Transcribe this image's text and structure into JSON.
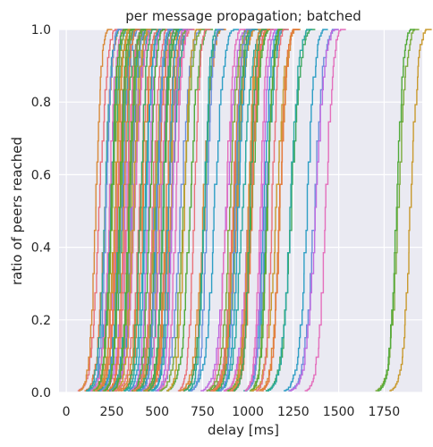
{
  "chart_data": {
    "type": "line",
    "title": "per message propagation; batched",
    "xlabel": "delay [ms]",
    "ylabel": "ratio of peers reached",
    "xlim": [
      -40,
      1960
    ],
    "ylim": [
      0,
      1
    ],
    "xticks": [
      0,
      250,
      500,
      750,
      1000,
      1250,
      1500,
      1750
    ],
    "yticks": [
      0.0,
      0.2,
      0.4,
      0.6,
      0.8,
      1.0
    ],
    "xtick_labels": [
      "0",
      "250",
      "500",
      "750",
      "1000",
      "1250",
      "1500",
      "1750"
    ],
    "ytick_labels": [
      "0.0",
      "0.2",
      "0.4",
      "0.6",
      "0.8",
      "1.0"
    ],
    "grid": true,
    "legend": "none",
    "background": "#eaeaf2",
    "grid_color": "#ffffff",
    "series_count": 120,
    "series_colors": [
      "#e9727a",
      "#d98a3a",
      "#e57a3f",
      "#3ea85f",
      "#2aa9a0",
      "#2f9fc5",
      "#6b8fdc",
      "#c06be0",
      "#e46fbc",
      "#7bab3c",
      "#51aa3a",
      "#c89a2f"
    ],
    "series_shape": "step cumulative distribution; cumulative ratio rises from 0 to 1 within a window of 150-250 ms per message",
    "series_start_ms": {
      "min": 60,
      "max": 1780,
      "clusters": [
        {
          "range": [
            60,
            500
          ],
          "messages": 68
        },
        {
          "range": [
            500,
            1100
          ],
          "messages": 44
        },
        {
          "range": [
            1100,
            1400
          ],
          "messages": 5
        },
        {
          "range": [
            1400,
            1780
          ],
          "messages": 3
        }
      ]
    }
  }
}
